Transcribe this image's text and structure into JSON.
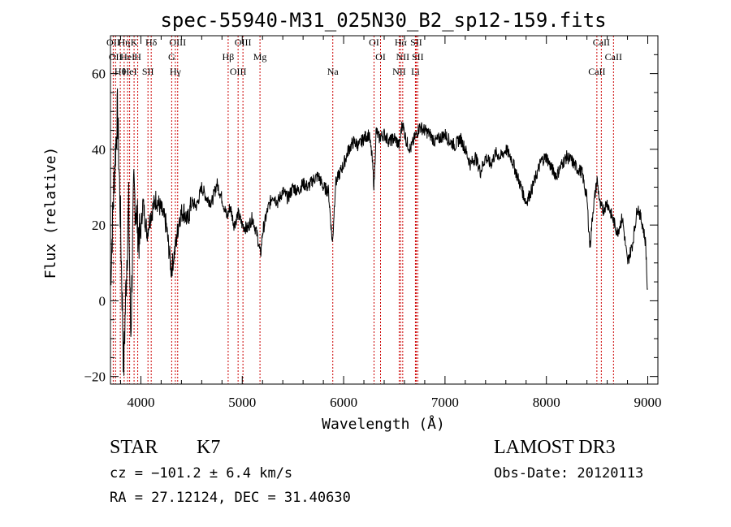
{
  "chart_data": {
    "type": "line",
    "title": "spec-55940-M31_025N30_B2_sp12-159.fits",
    "xlabel": "Wavelength (Å)",
    "ylabel": "Flux (relative)",
    "xlim": [
      3700,
      9100
    ],
    "ylim": [
      -22,
      70
    ],
    "xticks": [
      4000,
      5000,
      6000,
      7000,
      8000,
      9000
    ],
    "yticks": [
      -20,
      0,
      20,
      40,
      60
    ],
    "series": [
      {
        "name": "spectrum",
        "x": [
          3700,
          3740,
          3770,
          3800,
          3830,
          3860,
          3880,
          3900,
          3930,
          3960,
          3990,
          4020,
          4060,
          4100,
          4150,
          4200,
          4250,
          4300,
          4340,
          4380,
          4420,
          4460,
          4500,
          4550,
          4600,
          4650,
          4700,
          4750,
          4800,
          4850,
          4880,
          4920,
          4960,
          5000,
          5050,
          5100,
          5150,
          5180,
          5200,
          5250,
          5300,
          5350,
          5400,
          5450,
          5500,
          5550,
          5600,
          5650,
          5700,
          5750,
          5800,
          5850,
          5890,
          5920,
          5950,
          6000,
          6050,
          6100,
          6150,
          6200,
          6250,
          6280,
          6300,
          6320,
          6350,
          6400,
          6450,
          6500,
          6550,
          6563,
          6580,
          6620,
          6660,
          6700,
          6750,
          6800,
          6850,
          6900,
          6950,
          7000,
          7050,
          7100,
          7150,
          7200,
          7250,
          7300,
          7350,
          7400,
          7450,
          7500,
          7550,
          7600,
          7650,
          7700,
          7750,
          7800,
          7850,
          7900,
          7950,
          8000,
          8050,
          8100,
          8150,
          8200,
          8250,
          8300,
          8350,
          8400,
          8430,
          8460,
          8500,
          8530,
          8560,
          8600,
          8650,
          8700,
          8750,
          8800,
          8850,
          8900,
          8950,
          8980,
          9000
        ],
        "y": [
          5,
          35,
          50,
          20,
          -18,
          10,
          25,
          -10,
          30,
          22,
          15,
          26,
          18,
          23,
          27,
          24,
          20,
          8,
          14,
          22,
          24,
          21,
          26,
          25,
          30,
          27,
          26,
          31,
          27,
          22,
          25,
          20,
          23,
          20,
          19,
          22,
          17,
          12,
          18,
          24,
          28,
          26,
          29,
          27,
          30,
          29,
          31,
          30,
          32,
          33,
          30,
          29,
          15,
          31,
          33,
          36,
          40,
          42,
          41,
          43,
          44,
          38,
          30,
          45,
          43,
          44,
          42,
          43,
          41,
          44,
          47,
          42,
          40,
          43,
          46,
          45,
          44,
          42,
          43,
          44,
          42,
          41,
          43,
          40,
          36,
          38,
          34,
          38,
          36,
          39,
          38,
          40,
          38,
          34,
          30,
          26,
          29,
          33,
          37,
          38,
          35,
          33,
          36,
          38,
          37,
          35,
          34,
          27,
          14,
          24,
          32,
          25,
          24,
          26,
          22,
          18,
          22,
          10,
          15,
          25,
          20,
          15,
          0
        ]
      }
    ],
    "line_markers": [
      {
        "wavelength": 3727,
        "label": "OII"
      },
      {
        "wavelength": 3750,
        "label": "OII"
      },
      {
        "wavelength": 3797,
        "label": "Hθ"
      },
      {
        "wavelength": 3835,
        "label": "Hη"
      },
      {
        "wavelength": 3869,
        "label": "HeI"
      },
      {
        "wavelength": 3889,
        "label": "HeI"
      },
      {
        "wavelength": 3933,
        "label": "K"
      },
      {
        "wavelength": 3969,
        "label": "H"
      },
      {
        "wavelength": 4070,
        "label": "SII"
      },
      {
        "wavelength": 4102,
        "label": "Hδ"
      },
      {
        "wavelength": 4304,
        "label": "G"
      },
      {
        "wavelength": 4340,
        "label": "Hγ"
      },
      {
        "wavelength": 4363,
        "label": "OIII"
      },
      {
        "wavelength": 4861,
        "label": "Hβ"
      },
      {
        "wavelength": 4959,
        "label": "OIII"
      },
      {
        "wavelength": 5007,
        "label": "OIII"
      },
      {
        "wavelength": 5175,
        "label": "Mg"
      },
      {
        "wavelength": 5893,
        "label": "Na"
      },
      {
        "wavelength": 6300,
        "label": "OI"
      },
      {
        "wavelength": 6364,
        "label": "OI"
      },
      {
        "wavelength": 6548,
        "label": "NII"
      },
      {
        "wavelength": 6563,
        "label": "Hα"
      },
      {
        "wavelength": 6583,
        "label": "NII"
      },
      {
        "wavelength": 6708,
        "label": "Li"
      },
      {
        "wavelength": 6716,
        "label": "SII"
      },
      {
        "wavelength": 6731,
        "label": "SII"
      },
      {
        "wavelength": 8498,
        "label": "CaII"
      },
      {
        "wavelength": 8542,
        "label": "CaII"
      },
      {
        "wavelength": 8662,
        "label": "CaII"
      }
    ],
    "colors": {
      "spectrum": "#000000",
      "marker": "#cc0000",
      "axis": "#000000"
    }
  },
  "info": {
    "class": "STAR",
    "subclass": "K7",
    "survey": "LAMOST DR3",
    "cz": "cz = −101.2 ± 6.4 km/s",
    "obs_date": "Obs-Date: 20120113",
    "radec": "RA =  27.12124, DEC =  31.40630"
  }
}
